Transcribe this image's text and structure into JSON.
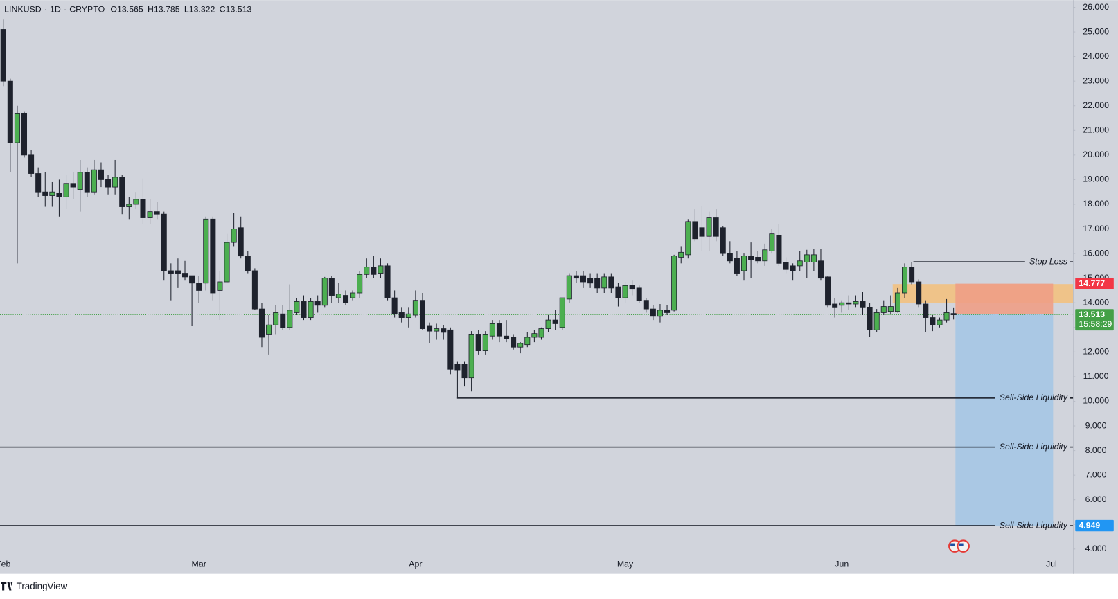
{
  "chart_data": {
    "type": "candlestick",
    "symbol": "LINKUSD",
    "separator": "·",
    "interval": "1D",
    "exchange": "CRYPTO",
    "ohlc_labels": [
      "O",
      "H",
      "L",
      "C"
    ],
    "up_color": "#4caf50",
    "down_color": "#1e222d",
    "categories": [
      "Feb",
      null,
      null,
      null,
      null,
      null,
      null,
      null,
      null,
      null,
      null,
      null,
      null,
      null,
      null,
      null,
      null,
      null,
      null,
      null,
      null,
      null,
      null,
      null,
      null,
      null,
      null,
      null,
      "Mar",
      null,
      null,
      null,
      null,
      null,
      null,
      null,
      null,
      null,
      null,
      null,
      null,
      null,
      null,
      null,
      null,
      null,
      null,
      null,
      null,
      null,
      null,
      null,
      null,
      null,
      null,
      null,
      null,
      null,
      null,
      "Apr",
      null,
      null,
      null,
      null,
      null,
      null,
      null,
      null,
      null,
      null,
      null,
      null,
      null,
      null,
      null,
      null,
      null,
      null,
      null,
      null,
      null,
      null,
      null,
      null,
      null,
      null,
      null,
      null,
      null,
      "May",
      null,
      null,
      null,
      null,
      null,
      null,
      null,
      null,
      null,
      null,
      null,
      null,
      null,
      null,
      null,
      null,
      null,
      null,
      null,
      null,
      null,
      null,
      null,
      null,
      null,
      null,
      null,
      null,
      null,
      null,
      "Jun",
      null,
      null,
      null,
      null,
      null,
      null,
      null,
      null,
      null,
      null,
      null,
      null,
      null,
      null,
      null,
      null,
      null,
      null,
      null,
      null,
      null,
      null,
      null,
      null,
      null,
      null,
      null,
      null,
      null,
      "Jul"
    ],
    "candles": [
      [
        25.1,
        25.5,
        22.8,
        23.0
      ],
      [
        23.0,
        23.1,
        19.3,
        20.5
      ],
      [
        20.5,
        22.0,
        15.6,
        21.7
      ],
      [
        21.7,
        21.75,
        19.9,
        20.0
      ],
      [
        20.0,
        20.2,
        19.1,
        19.25
      ],
      [
        19.25,
        19.5,
        18.3,
        18.5
      ],
      [
        18.5,
        19.3,
        17.9,
        18.35
      ],
      [
        18.35,
        18.9,
        17.9,
        18.5
      ],
      [
        18.45,
        19.0,
        17.5,
        18.3
      ],
      [
        18.3,
        19.2,
        17.8,
        18.85
      ],
      [
        18.85,
        19.3,
        18.2,
        18.7
      ],
      [
        18.6,
        19.8,
        17.7,
        19.3
      ],
      [
        19.3,
        19.5,
        18.3,
        18.5
      ],
      [
        18.5,
        19.8,
        18.4,
        19.4
      ],
      [
        19.4,
        19.7,
        18.7,
        19.0
      ],
      [
        19.0,
        19.2,
        18.4,
        18.7
      ],
      [
        18.7,
        19.8,
        18.4,
        19.1
      ],
      [
        19.1,
        19.2,
        17.6,
        17.9
      ],
      [
        17.9,
        18.3,
        17.4,
        18.0
      ],
      [
        18.0,
        18.5,
        17.8,
        18.2
      ],
      [
        18.2,
        19.05,
        17.2,
        17.45
      ],
      [
        17.45,
        18.2,
        17.2,
        17.7
      ],
      [
        17.7,
        18.1,
        17.4,
        17.6
      ],
      [
        17.6,
        17.7,
        14.9,
        15.3
      ],
      [
        15.3,
        15.6,
        14.1,
        15.2
      ],
      [
        15.3,
        15.8,
        14.6,
        15.2
      ],
      [
        15.2,
        15.7,
        14.9,
        15.05
      ],
      [
        15.1,
        15.1,
        13.05,
        14.8
      ],
      [
        14.8,
        15.1,
        14.0,
        14.5
      ],
      [
        14.8,
        17.5,
        14.5,
        17.4
      ],
      [
        17.4,
        17.5,
        14.1,
        14.4
      ],
      [
        14.5,
        15.3,
        13.3,
        14.85
      ],
      [
        14.85,
        16.8,
        14.8,
        16.45
      ],
      [
        16.45,
        17.65,
        16.3,
        17.0
      ],
      [
        17.05,
        17.5,
        15.8,
        15.9
      ],
      [
        15.9,
        16.1,
        15.2,
        15.3
      ],
      [
        15.3,
        15.4,
        13.7,
        13.75
      ],
      [
        13.75,
        14.0,
        12.2,
        12.6
      ],
      [
        12.7,
        13.5,
        11.9,
        13.1
      ],
      [
        13.1,
        13.9,
        12.7,
        13.6
      ],
      [
        13.55,
        13.9,
        12.9,
        13.0
      ],
      [
        13.0,
        14.75,
        12.9,
        13.7
      ],
      [
        13.6,
        14.2,
        13.5,
        14.05
      ],
      [
        14.05,
        14.3,
        13.3,
        13.4
      ],
      [
        13.4,
        14.2,
        13.3,
        14.05
      ],
      [
        14.05,
        14.3,
        13.6,
        13.9
      ],
      [
        13.9,
        15.05,
        13.8,
        15.0
      ],
      [
        15.0,
        15.1,
        14.0,
        14.3
      ],
      [
        14.2,
        14.8,
        14.0,
        14.35
      ],
      [
        14.3,
        14.5,
        13.9,
        14.0
      ],
      [
        14.2,
        14.5,
        14.1,
        14.4
      ],
      [
        14.4,
        15.3,
        14.2,
        15.15
      ],
      [
        15.15,
        15.8,
        15.0,
        15.45
      ],
      [
        15.45,
        15.9,
        15.0,
        15.15
      ],
      [
        15.2,
        15.8,
        15.0,
        15.5
      ],
      [
        15.5,
        15.6,
        14.1,
        14.2
      ],
      [
        14.2,
        14.5,
        13.4,
        13.55
      ],
      [
        13.6,
        13.8,
        13.2,
        13.4
      ],
      [
        13.4,
        13.8,
        13.0,
        13.55
      ],
      [
        13.5,
        14.5,
        13.4,
        14.1
      ],
      [
        14.1,
        14.4,
        12.9,
        12.95
      ],
      [
        13.05,
        13.2,
        12.35,
        12.85
      ],
      [
        12.85,
        13.15,
        12.5,
        12.95
      ],
      [
        12.95,
        13.1,
        12.5,
        12.8
      ],
      [
        12.9,
        13.0,
        11.1,
        11.3
      ],
      [
        11.5,
        11.6,
        10.15,
        11.25
      ],
      [
        11.5,
        11.6,
        10.6,
        10.95
      ],
      [
        10.95,
        12.85,
        10.4,
        12.7
      ],
      [
        12.7,
        12.9,
        11.9,
        12.05
      ],
      [
        12.05,
        12.85,
        11.9,
        12.7
      ],
      [
        12.65,
        13.3,
        12.5,
        13.15
      ],
      [
        13.15,
        13.3,
        12.4,
        12.65
      ],
      [
        12.65,
        13.3,
        12.4,
        12.55
      ],
      [
        12.6,
        12.7,
        12.1,
        12.2
      ],
      [
        12.2,
        12.4,
        11.95,
        12.35
      ],
      [
        12.3,
        12.8,
        12.2,
        12.6
      ],
      [
        12.6,
        12.9,
        12.4,
        12.75
      ],
      [
        12.6,
        13.0,
        12.5,
        12.95
      ],
      [
        12.95,
        13.5,
        12.8,
        13.3
      ],
      [
        13.3,
        13.7,
        12.9,
        13.15
      ],
      [
        13.0,
        14.2,
        12.9,
        14.2
      ],
      [
        14.15,
        15.2,
        14.0,
        15.1
      ],
      [
        15.1,
        15.3,
        14.8,
        15.0
      ],
      [
        15.1,
        15.3,
        14.6,
        14.85
      ],
      [
        15.0,
        15.2,
        14.6,
        14.8
      ],
      [
        15.0,
        15.2,
        14.4,
        14.6
      ],
      [
        14.6,
        15.2,
        14.4,
        15.05
      ],
      [
        15.05,
        15.2,
        14.4,
        14.6
      ],
      [
        14.65,
        14.8,
        13.85,
        14.2
      ],
      [
        14.2,
        14.85,
        14.0,
        14.7
      ],
      [
        14.7,
        14.9,
        14.3,
        14.55
      ],
      [
        14.6,
        14.7,
        14.0,
        14.1
      ],
      [
        14.1,
        14.2,
        13.6,
        13.75
      ],
      [
        13.75,
        13.9,
        13.3,
        13.45
      ],
      [
        13.45,
        13.95,
        13.2,
        13.7
      ],
      [
        13.7,
        13.9,
        13.5,
        13.6
      ],
      [
        13.7,
        15.95,
        13.65,
        15.9
      ],
      [
        15.85,
        16.3,
        15.6,
        16.05
      ],
      [
        15.95,
        17.4,
        15.8,
        17.3
      ],
      [
        17.3,
        17.8,
        16.5,
        16.6
      ],
      [
        17.05,
        17.95,
        16.1,
        16.7
      ],
      [
        16.7,
        17.7,
        16.1,
        17.45
      ],
      [
        17.45,
        17.8,
        16.5,
        16.7
      ],
      [
        17.05,
        17.1,
        15.9,
        16.0
      ],
      [
        16.0,
        16.5,
        15.6,
        15.7
      ],
      [
        15.8,
        16.1,
        15.1,
        15.2
      ],
      [
        15.3,
        16.0,
        14.9,
        15.9
      ],
      [
        15.9,
        16.45,
        15.0,
        15.75
      ],
      [
        15.85,
        16.1,
        15.6,
        15.7
      ],
      [
        15.7,
        16.4,
        15.5,
        16.15
      ],
      [
        16.1,
        17.0,
        16.0,
        16.8
      ],
      [
        16.75,
        17.2,
        15.5,
        15.6
      ],
      [
        15.65,
        15.85,
        15.2,
        15.35
      ],
      [
        15.5,
        15.6,
        14.9,
        15.3
      ],
      [
        15.5,
        16.1,
        15.3,
        15.7
      ],
      [
        15.65,
        16.15,
        15.0,
        15.95
      ],
      [
        15.65,
        16.2,
        15.3,
        15.95
      ],
      [
        15.7,
        16.2,
        14.9,
        15.0
      ],
      [
        15.05,
        15.1,
        13.8,
        13.9
      ],
      [
        13.95,
        14.2,
        13.4,
        13.8
      ],
      [
        13.9,
        14.1,
        13.6,
        14.0
      ],
      [
        14.0,
        14.3,
        13.7,
        13.95
      ],
      [
        13.95,
        14.3,
        13.8,
        14.05
      ],
      [
        14.05,
        14.45,
        13.5,
        13.8
      ],
      [
        13.8,
        14.0,
        12.6,
        12.9
      ],
      [
        12.9,
        13.75,
        12.8,
        13.6
      ],
      [
        13.6,
        14.1,
        13.5,
        13.85
      ],
      [
        13.65,
        14.3,
        13.55,
        13.85
      ],
      [
        13.65,
        14.6,
        13.6,
        14.4
      ],
      [
        14.4,
        15.6,
        14.2,
        15.45
      ],
      [
        15.45,
        15.65,
        14.75,
        14.85
      ],
      [
        14.85,
        14.95,
        13.8,
        13.95
      ],
      [
        13.95,
        14.1,
        12.8,
        13.4
      ],
      [
        13.4,
        13.5,
        12.85,
        13.1
      ],
      [
        13.1,
        13.4,
        13.0,
        13.3
      ],
      [
        13.3,
        14.15,
        13.2,
        13.6
      ],
      [
        13.565,
        13.785,
        13.322,
        13.513
      ],
      null,
      null,
      null,
      null,
      null,
      null,
      null,
      null,
      null,
      null,
      null,
      null,
      null,
      null
    ],
    "ylim": [
      3.77,
      26.29
    ],
    "yticks": [
      {
        "value": 4,
        "label": "4.000"
      },
      {
        "value": 5,
        "label": "5.000"
      },
      {
        "value": 6,
        "label": "6.000"
      },
      {
        "value": 7,
        "label": "7.000"
      },
      {
        "value": 8,
        "label": "8.000"
      },
      {
        "value": 9,
        "label": "9.000"
      },
      {
        "value": 10,
        "label": "10.000"
      },
      {
        "value": 11,
        "label": "11.000"
      },
      {
        "value": 12,
        "label": "12.000"
      },
      {
        "value": 13,
        "label": "13.000"
      },
      {
        "value": 14,
        "label": "14.000"
      },
      {
        "value": 15,
        "label": "15.000"
      },
      {
        "value": 16,
        "label": "16.000"
      },
      {
        "value": 17,
        "label": "17.000"
      },
      {
        "value": 18,
        "label": "18.000"
      },
      {
        "value": 19,
        "label": "19.000"
      },
      {
        "value": 20,
        "label": "20.000"
      },
      {
        "value": 21,
        "label": "21.000"
      },
      {
        "value": 22,
        "label": "22.000"
      },
      {
        "value": 23,
        "label": "23.000"
      },
      {
        "value": 24,
        "label": "24.000"
      },
      {
        "value": 25,
        "label": "25.000"
      },
      {
        "value": 26,
        "label": "26.000"
      }
    ],
    "levels": [
      {
        "label": "Stop Loss",
        "value": 15.66
      },
      {
        "label": "Sell-Side Liquidity",
        "value": 10.13
      },
      {
        "label": "Sell-Side Liquidity",
        "value": 8.14
      },
      {
        "label": "Sell-Side Liquidity",
        "value": 4.949
      }
    ],
    "zone": {
      "top": 14.76,
      "bottom": 14.0,
      "color": "#f5c07a"
    },
    "position": {
      "stop": 14.777,
      "entry": 13.55,
      "target": 4.949,
      "stop_color": "#f23645",
      "target_color": "#2196f3",
      "stop_fill": "#ee9f86",
      "target_fill": "#aac8e4"
    },
    "last_price_color": "#43a047",
    "countdown": "15:58:29",
    "brand": "TradingView"
  }
}
